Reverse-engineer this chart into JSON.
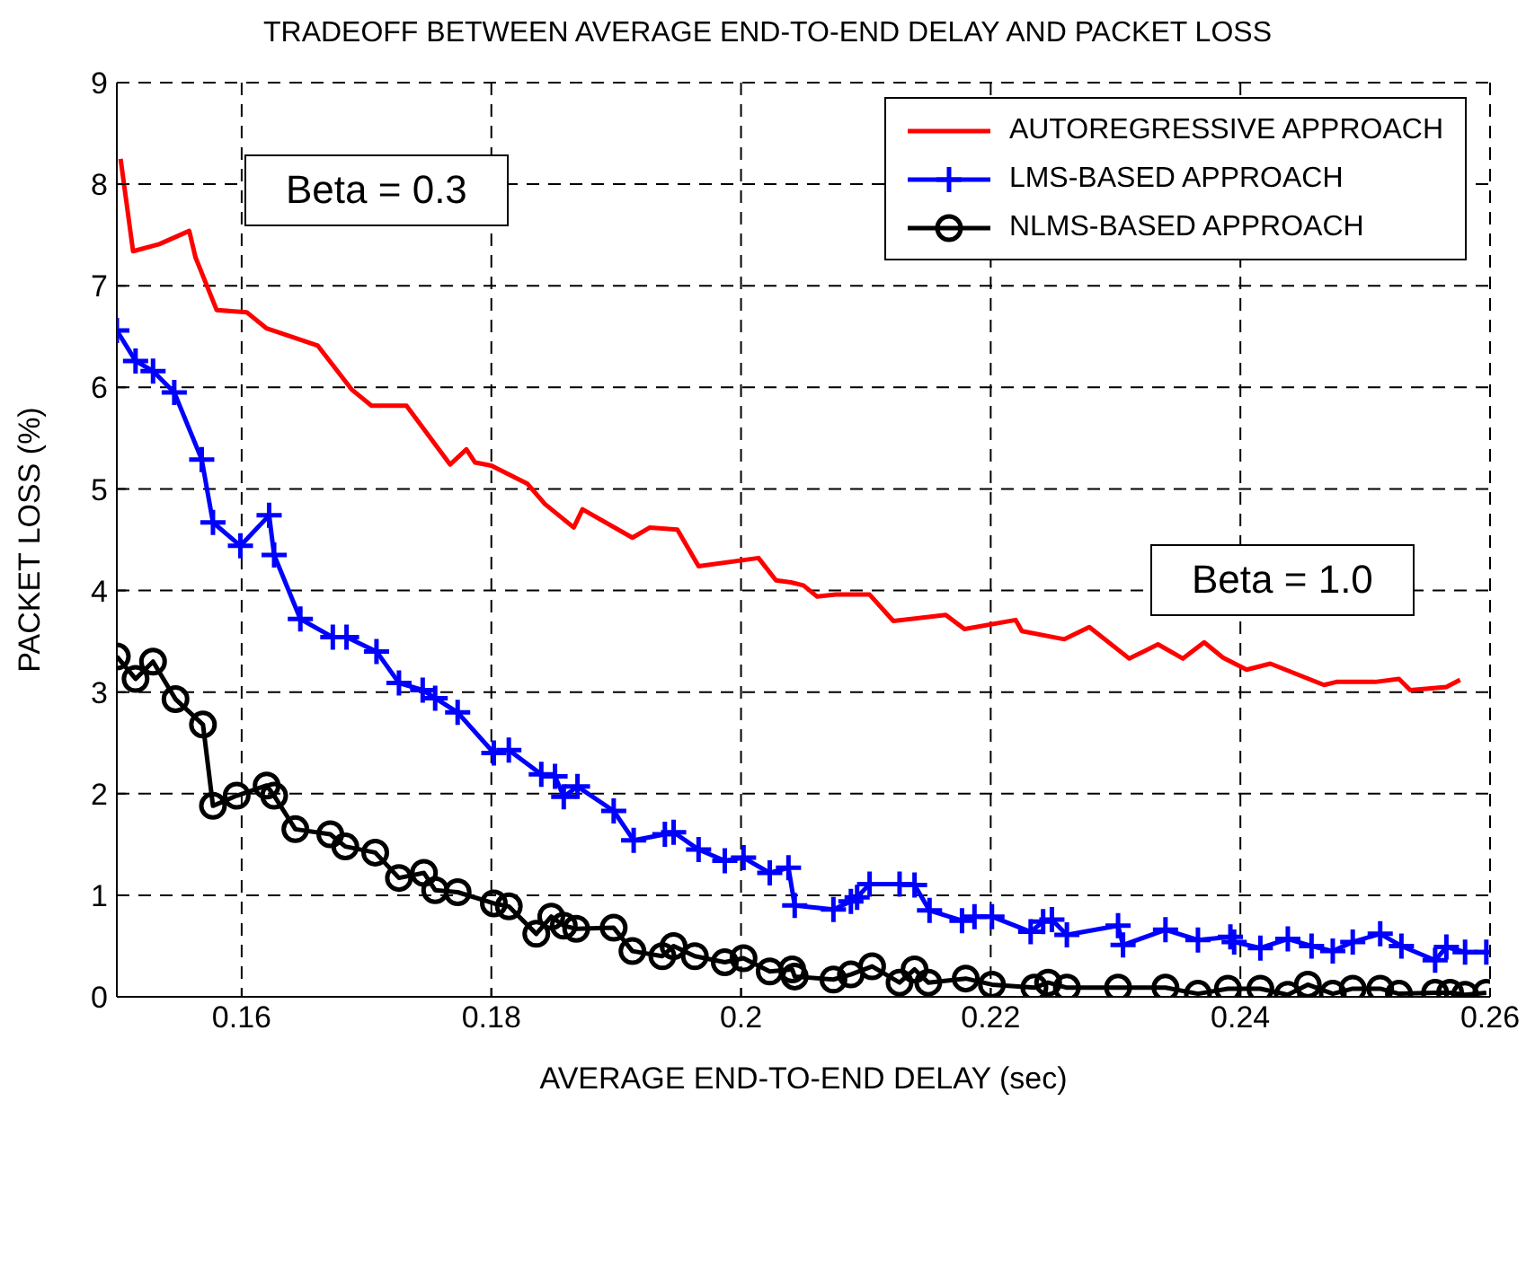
{
  "chart_data": {
    "type": "line",
    "title": "TRADEOFF BETWEEN AVERAGE END-TO-END DELAY AND PACKET LOSS",
    "xlabel": "AVERAGE END-TO-END DELAY (sec)",
    "ylabel": "PACKET LOSS (%)",
    "xlim": [
      0.15,
      0.26
    ],
    "xticks": [
      0.16,
      0.18,
      0.2,
      0.22,
      0.24,
      0.26
    ],
    "ylim": [
      0,
      9
    ],
    "yticks": [
      0,
      1,
      2,
      3,
      4,
      5,
      6,
      7,
      8,
      9
    ],
    "grid": true,
    "legend": "top right",
    "line_style": "solid",
    "annotations": [
      "Beta = 0.3",
      "Beta = 1.0"
    ],
    "series": [
      {
        "name": "AUTOREGRESSIVE APPROACH",
        "color": "#ff0000",
        "marker": "none",
        "x": [
          0.1503,
          0.1513,
          0.1534,
          0.1558,
          0.1563,
          0.158,
          0.1604,
          0.162,
          0.1661,
          0.1688,
          0.1704,
          0.1732,
          0.1767,
          0.178,
          0.1787,
          0.18,
          0.1829,
          0.1843,
          0.1866,
          0.1873,
          0.1913,
          0.1927,
          0.1949,
          0.1966,
          0.2014,
          0.2028,
          0.204,
          0.205,
          0.2061,
          0.2076,
          0.2103,
          0.2122,
          0.2164,
          0.2179,
          0.222,
          0.2225,
          0.2259,
          0.2279,
          0.2311,
          0.2334,
          0.2354,
          0.2371,
          0.2386,
          0.2405,
          0.2424,
          0.2467,
          0.2477,
          0.2508,
          0.2527,
          0.2536,
          0.2565,
          0.2576
        ],
        "values": [
          8.25,
          7.34,
          7.41,
          7.54,
          7.28,
          6.76,
          6.74,
          6.58,
          6.41,
          5.98,
          5.82,
          5.82,
          5.24,
          5.39,
          5.26,
          5.23,
          5.05,
          4.85,
          4.62,
          4.8,
          4.52,
          4.62,
          4.6,
          4.24,
          4.32,
          4.1,
          4.08,
          4.05,
          3.94,
          3.96,
          3.96,
          3.7,
          3.76,
          3.62,
          3.71,
          3.6,
          3.52,
          3.64,
          3.33,
          3.47,
          3.33,
          3.49,
          3.34,
          3.22,
          3.28,
          3.07,
          3.1,
          3.1,
          3.13,
          3.02,
          3.05,
          3.12
        ]
      },
      {
        "name": "LMS-BASED APPROACH",
        "color": "#0000ff",
        "marker": "cross",
        "x": [
          0.15,
          0.1515,
          0.1529,
          0.1546,
          0.1568,
          0.1577,
          0.1599,
          0.1622,
          0.1626,
          0.1647,
          0.1673,
          0.1684,
          0.1708,
          0.1726,
          0.1745,
          0.1755,
          0.1773,
          0.1802,
          0.1814,
          0.184,
          0.1851,
          0.1858,
          0.1869,
          0.1898,
          0.1914,
          0.1939,
          0.1946,
          0.1966,
          0.1987,
          0.2002,
          0.2023,
          0.2038,
          0.2043,
          0.2074,
          0.2088,
          0.2093,
          0.2103,
          0.2127,
          0.2139,
          0.2151,
          0.2177,
          0.2187,
          0.2201,
          0.2232,
          0.2242,
          0.2249,
          0.2261,
          0.2302,
          0.2306,
          0.234,
          0.2366,
          0.2392,
          0.2395,
          0.2416,
          0.2438,
          0.2457,
          0.2474,
          0.249,
          0.2512,
          0.2529,
          0.2556,
          0.2565,
          0.258,
          0.2597
        ],
        "values": [
          6.56,
          6.26,
          6.16,
          5.95,
          5.29,
          4.67,
          4.44,
          4.74,
          4.35,
          3.72,
          3.54,
          3.54,
          3.4,
          3.09,
          3.02,
          2.94,
          2.8,
          2.4,
          2.43,
          2.19,
          2.17,
          1.97,
          2.07,
          1.83,
          1.54,
          1.6,
          1.62,
          1.45,
          1.34,
          1.37,
          1.22,
          1.27,
          0.9,
          0.86,
          0.94,
          0.98,
          1.11,
          1.11,
          1.1,
          0.85,
          0.75,
          0.79,
          0.79,
          0.64,
          0.74,
          0.76,
          0.61,
          0.7,
          0.51,
          0.66,
          0.56,
          0.59,
          0.54,
          0.48,
          0.57,
          0.5,
          0.45,
          0.54,
          0.62,
          0.5,
          0.36,
          0.49,
          0.44,
          0.44
        ]
      },
      {
        "name": "NLMS-BASED APPROACH",
        "color": "#000000",
        "marker": "circle",
        "x": [
          0.15,
          0.1515,
          0.1529,
          0.1547,
          0.1569,
          0.1577,
          0.1596,
          0.162,
          0.1626,
          0.1643,
          0.1671,
          0.1683,
          0.1707,
          0.1726,
          0.1746,
          0.1755,
          0.1773,
          0.1802,
          0.1814,
          0.1836,
          0.1848,
          0.1858,
          0.1868,
          0.1898,
          0.1913,
          0.1937,
          0.1946,
          0.1963,
          0.1987,
          0.2002,
          0.2023,
          0.2041,
          0.2043,
          0.2074,
          0.2088,
          0.2105,
          0.2127,
          0.2139,
          0.215,
          0.218,
          0.2201,
          0.2235,
          0.2246,
          0.2261,
          0.2302,
          0.234,
          0.2366,
          0.239,
          0.2416,
          0.2438,
          0.2454,
          0.2474,
          0.249,
          0.2512,
          0.2527,
          0.2556,
          0.2568,
          0.258,
          0.2597
        ],
        "values": [
          3.35,
          3.13,
          3.3,
          2.93,
          2.68,
          1.88,
          1.98,
          2.08,
          1.98,
          1.65,
          1.6,
          1.48,
          1.42,
          1.17,
          1.22,
          1.05,
          1.03,
          0.92,
          0.89,
          0.62,
          0.79,
          0.7,
          0.67,
          0.68,
          0.45,
          0.4,
          0.5,
          0.4,
          0.34,
          0.38,
          0.25,
          0.27,
          0.2,
          0.17,
          0.22,
          0.3,
          0.14,
          0.27,
          0.14,
          0.18,
          0.12,
          0.09,
          0.14,
          0.09,
          0.09,
          0.09,
          0.03,
          0.08,
          0.08,
          0.02,
          0.12,
          0.03,
          0.08,
          0.08,
          0.03,
          0.04,
          0.04,
          0.02,
          0.04
        ]
      }
    ]
  }
}
